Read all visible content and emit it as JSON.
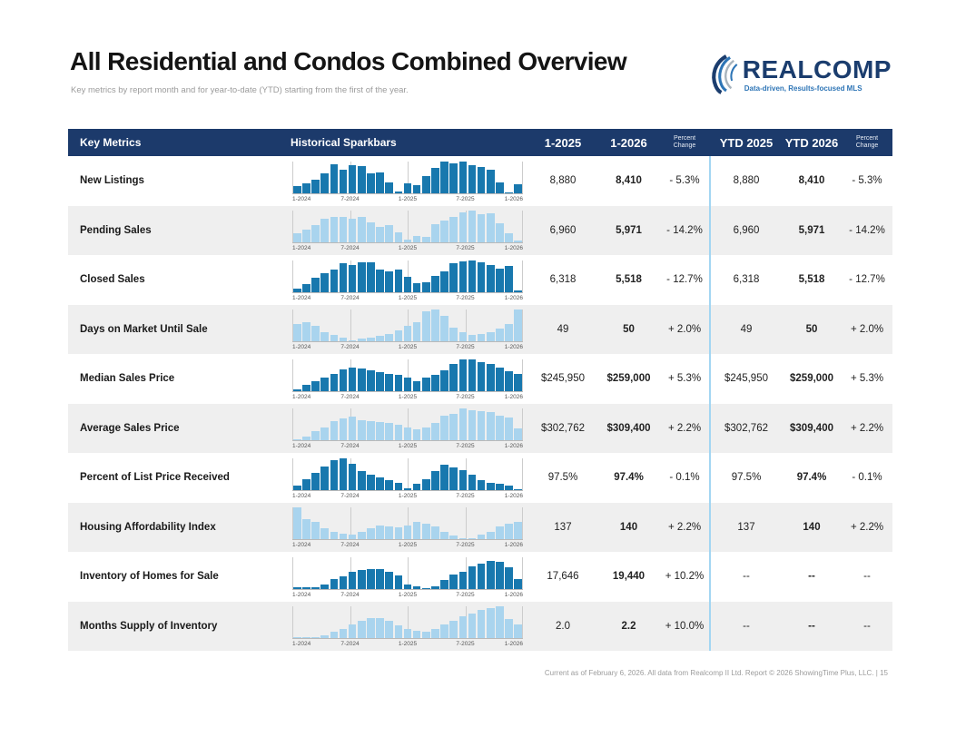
{
  "page": {
    "title": "All Residential and Condos Combined Overview",
    "subtitle": "Key metrics by report month and for year-to-date (YTD) starting from the first of the year."
  },
  "logo": {
    "name": "REALCOMP",
    "tagline": "Data-driven, Results-focused MLS"
  },
  "colors": {
    "header_bg": "#1c3a6b",
    "bar_dark": "#1878ae",
    "bar_light": "#a9d4ee",
    "alt_row_bg": "#efefef",
    "ytd_divider": "#a3d6f2",
    "logo_navy": "#1b3d6e",
    "logo_blue": "#2e75b6",
    "swoosh_gray": "#a9b4bd"
  },
  "table": {
    "headers": {
      "key_metrics": "Key Metrics",
      "sparkbars": "Historical Sparkbars",
      "month_2025": "1-2025",
      "month_2026": "1-2026",
      "pct_change": "Percent\nChange",
      "ytd_2025": "YTD 2025",
      "ytd_2026": "YTD 2026",
      "ytd_pct_change": "Percent\nChange"
    },
    "sparkbar_ticks": [
      "1-2024",
      "7-2024",
      "1-2025",
      "7-2025",
      "1-2026"
    ],
    "rows": [
      {
        "label": "New Listings",
        "m2025": "8,880",
        "m2026": "8,410",
        "pct": "- 5.3%",
        "ytd2025": "8,880",
        "ytd2026": "8,410",
        "ytdpct": "- 5.3%",
        "bar_color": "dark",
        "sparkbar": [
          22,
          30,
          42,
          62,
          92,
          75,
          88,
          85,
          62,
          65,
          35,
          5,
          30,
          25,
          55,
          80,
          100,
          95,
          98,
          88,
          82,
          75,
          35,
          3,
          28
        ]
      },
      {
        "label": "Pending Sales",
        "m2025": "6,960",
        "m2026": "5,971",
        "pct": "- 14.2%",
        "ytd2025": "6,960",
        "ytd2026": "5,971",
        "ytdpct": "- 14.2%",
        "bar_color": "light",
        "sparkbar": [
          30,
          40,
          55,
          75,
          82,
          80,
          75,
          82,
          65,
          50,
          55,
          32,
          10,
          22,
          18,
          58,
          70,
          82,
          95,
          100,
          88,
          92,
          62,
          30,
          6
        ]
      },
      {
        "label": "Closed Sales",
        "m2025": "6,318",
        "m2026": "5,518",
        "pct": "- 12.7%",
        "ytd2025": "6,318",
        "ytd2026": "5,518",
        "ytdpct": "- 12.7%",
        "bar_color": "dark",
        "sparkbar": [
          12,
          25,
          45,
          58,
          70,
          92,
          85,
          95,
          93,
          70,
          65,
          70,
          48,
          28,
          30,
          50,
          65,
          90,
          97,
          100,
          93,
          85,
          75,
          82,
          6
        ]
      },
      {
        "label": "Days on Market Until Sale",
        "m2025": "49",
        "m2026": "50",
        "pct": "+ 2.0%",
        "ytd2025": "49",
        "ytd2026": "50",
        "ytdpct": "+ 2.0%",
        "bar_color": "light",
        "sparkbar": [
          55,
          62,
          48,
          30,
          22,
          12,
          5,
          8,
          12,
          18,
          25,
          35,
          48,
          60,
          95,
          100,
          80,
          45,
          30,
          22,
          25,
          30,
          42,
          55,
          100
        ]
      },
      {
        "label": "Median Sales Price",
        "m2025": "$245,950",
        "m2026": "$259,000",
        "pct": "+ 5.3%",
        "ytd2025": "$245,950",
        "ytd2026": "$259,000",
        "ytdpct": "+ 5.3%",
        "bar_color": "dark",
        "sparkbar": [
          5,
          20,
          32,
          42,
          55,
          68,
          75,
          72,
          65,
          58,
          55,
          52,
          42,
          32,
          42,
          52,
          65,
          85,
          98,
          100,
          90,
          85,
          75,
          62,
          55
        ]
      },
      {
        "label": "Average Sales Price",
        "m2025": "$302,762",
        "m2026": "$309,400",
        "pct": "+ 2.2%",
        "ytd2025": "$302,762",
        "ytd2026": "$309,400",
        "ytdpct": "+ 2.2%",
        "bar_color": "light",
        "sparkbar": [
          5,
          12,
          28,
          42,
          62,
          70,
          75,
          65,
          60,
          58,
          55,
          48,
          40,
          35,
          42,
          55,
          78,
          85,
          100,
          95,
          92,
          88,
          78,
          72,
          38
        ]
      },
      {
        "label": "Percent of List Price Received",
        "m2025": "97.5%",
        "m2026": "97.4%",
        "pct": "- 0.1%",
        "ytd2025": "97.5%",
        "ytd2026": "97.4%",
        "ytdpct": "- 0.1%",
        "bar_color": "dark",
        "sparkbar": [
          15,
          35,
          55,
          75,
          95,
          100,
          82,
          60,
          48,
          38,
          30,
          22,
          5,
          18,
          35,
          58,
          78,
          72,
          62,
          48,
          32,
          22,
          18,
          15,
          3
        ]
      },
      {
        "label": "Housing Affordability Index",
        "m2025": "137",
        "m2026": "140",
        "pct": "+ 2.2%",
        "ytd2025": "137",
        "ytd2026": "140",
        "ytdpct": "+ 2.2%",
        "bar_color": "light",
        "sparkbar": [
          100,
          65,
          55,
          35,
          25,
          18,
          15,
          25,
          35,
          45,
          42,
          38,
          45,
          55,
          48,
          42,
          25,
          12,
          3,
          5,
          15,
          25,
          42,
          48,
          55
        ]
      },
      {
        "label": "Inventory of Homes for Sale",
        "m2025": "17,646",
        "m2026": "19,440",
        "pct": "+ 10.2%",
        "ytd2025": "--",
        "ytd2026": "--",
        "ytdpct": "--",
        "bar_color": "dark",
        "sparkbar": [
          6,
          4,
          4,
          15,
          32,
          38,
          55,
          58,
          62,
          62,
          55,
          42,
          15,
          8,
          3,
          8,
          28,
          45,
          55,
          70,
          80,
          88,
          85,
          68,
          30
        ]
      },
      {
        "label": "Months Supply of Inventory",
        "m2025": "2.0",
        "m2026": "2.2",
        "pct": "+ 10.0%",
        "ytd2025": "--",
        "ytd2026": "--",
        "ytdpct": "--",
        "bar_color": "light",
        "sparkbar": [
          4,
          3,
          2,
          8,
          22,
          30,
          45,
          55,
          65,
          65,
          55,
          40,
          30,
          25,
          20,
          30,
          45,
          55,
          68,
          78,
          88,
          95,
          100,
          60,
          45
        ]
      }
    ]
  },
  "footer": {
    "text": "Current as of February 6, 2026. All data from Realcomp II Ltd. Report © 2026 ShowingTime Plus, LLC.",
    "page_label": "|  15"
  }
}
